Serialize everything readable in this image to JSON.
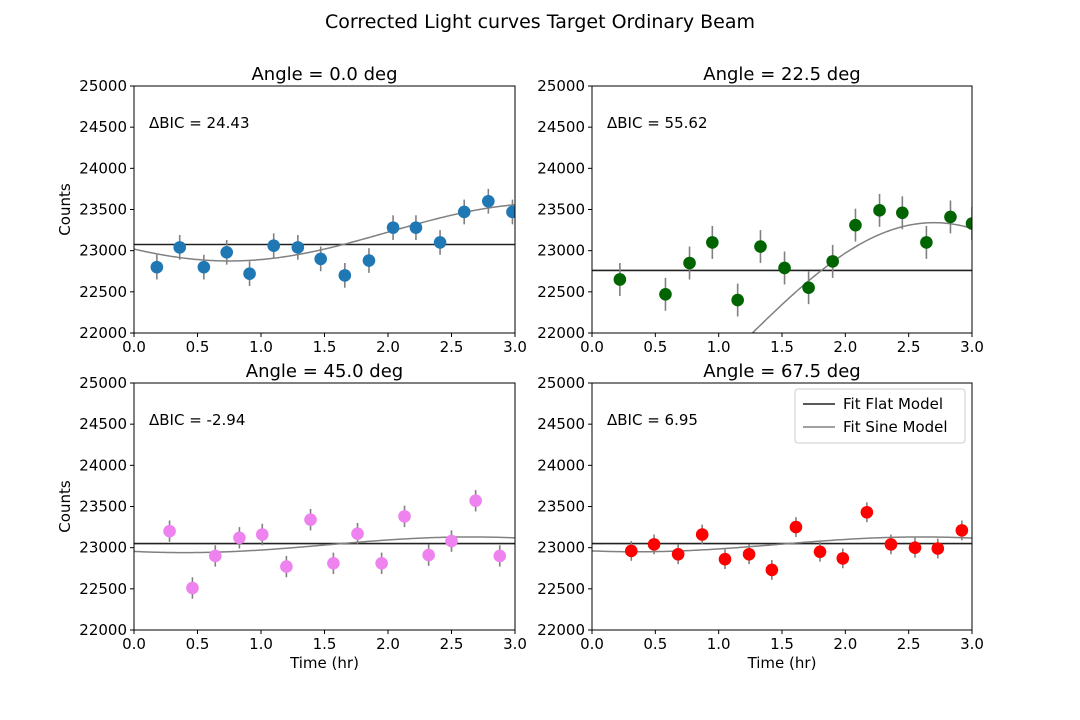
{
  "figure": {
    "suptitle": "Corrected Light curves Target Ordinary Beam"
  },
  "legend": {
    "flat_label": "Fit Flat Model",
    "sine_label": "Fit Sine Model"
  },
  "chart_data": [
    {
      "type": "scatter",
      "title": "Angle = 0.0 deg",
      "annotation": "ΔBIC = 24.43",
      "xlabel": "",
      "ylabel": "Counts",
      "xlim": [
        0.0,
        3.0
      ],
      "ylim": [
        22000,
        25000
      ],
      "xticks": [
        "0.0",
        "0.5",
        "1.0",
        "1.5",
        "2.0",
        "2.5",
        "3.0"
      ],
      "yticks": [
        "22000",
        "22500",
        "23000",
        "23500",
        "24000",
        "24500",
        "25000"
      ],
      "point_color": "#1f77b4",
      "x": [
        0.18,
        0.36,
        0.55,
        0.73,
        0.91,
        1.1,
        1.29,
        1.47,
        1.66,
        1.85,
        2.04,
        2.22,
        2.41,
        2.6,
        2.79,
        2.98
      ],
      "y": [
        22800,
        23040,
        22800,
        22980,
        22720,
        23060,
        23040,
        22900,
        22700,
        22880,
        23280,
        23280,
        23100,
        23470,
        23600,
        23470
      ],
      "yerr": 150,
      "flat_level": 23075,
      "sine": {
        "offset": 23225,
        "amplitude": 350,
        "period": 5.0,
        "trough_x": 0.75
      }
    },
    {
      "type": "scatter",
      "title": "Angle = 22.5 deg",
      "annotation": "ΔBIC = 55.62",
      "xlabel": "",
      "ylabel": "",
      "xlim": [
        0.0,
        3.0
      ],
      "ylim": [
        22000,
        25000
      ],
      "xticks": [
        "0.0",
        "0.5",
        "1.0",
        "1.5",
        "2.0",
        "2.5",
        "3.0"
      ],
      "yticks": [
        "22000",
        "22500",
        "23000",
        "23500",
        "24000",
        "24500",
        "25000"
      ],
      "point_color": "#006400",
      "x": [
        0.22,
        0.58,
        0.77,
        0.95,
        1.15,
        1.33,
        1.52,
        1.71,
        1.9,
        2.08,
        2.27,
        2.45,
        2.64,
        2.83,
        3.0
      ],
      "y": [
        22650,
        22470,
        22850,
        23100,
        22400,
        23050,
        22790,
        22550,
        22870,
        23310,
        23490,
        23460,
        23100,
        23410,
        23330
      ],
      "yerr": 200,
      "flat_level": 22760,
      "sine": {
        "offset": 21900,
        "amplitude": 1440,
        "period": 6.0,
        "trough_x": -0.3
      }
    },
    {
      "type": "scatter",
      "title": "Angle = 45.0 deg",
      "annotation": "ΔBIC = -2.94",
      "xlabel": "Time (hr)",
      "ylabel": "Counts",
      "xlim": [
        0.0,
        3.0
      ],
      "ylim": [
        22000,
        25000
      ],
      "xticks": [
        "0.0",
        "0.5",
        "1.0",
        "1.5",
        "2.0",
        "2.5",
        "3.0"
      ],
      "yticks": [
        "22000",
        "22500",
        "23000",
        "23500",
        "24000",
        "24500",
        "25000"
      ],
      "point_color": "#ee82ee",
      "x": [
        0.28,
        0.46,
        0.64,
        0.83,
        1.01,
        1.2,
        1.39,
        1.57,
        1.76,
        1.95,
        2.13,
        2.32,
        2.5,
        2.69,
        2.88
      ],
      "y": [
        23200,
        22510,
        22900,
        23120,
        23160,
        22770,
        23340,
        22810,
        23170,
        22810,
        23380,
        22910,
        23080,
        23570,
        22900
      ],
      "yerr": 130,
      "flat_level": 23050,
      "sine": {
        "offset": 23035,
        "amplitude": 95,
        "period": 4.5,
        "trough_x": 0.4
      }
    },
    {
      "type": "scatter",
      "title": "Angle = 67.5 deg",
      "annotation": "ΔBIC = 6.95",
      "xlabel": "Time (hr)",
      "ylabel": "",
      "xlim": [
        0.0,
        3.0
      ],
      "ylim": [
        22000,
        25000
      ],
      "xticks": [
        "0.0",
        "0.5",
        "1.0",
        "1.5",
        "2.0",
        "2.5",
        "3.0"
      ],
      "yticks": [
        "22000",
        "22500",
        "23000",
        "23500",
        "24000",
        "24500",
        "25000"
      ],
      "point_color": "#ff0000",
      "legend_position": "upper-right",
      "x": [
        0.31,
        0.49,
        0.68,
        0.87,
        1.05,
        1.24,
        1.42,
        1.61,
        1.8,
        1.98,
        2.17,
        2.36,
        2.55,
        2.73,
        2.92
      ],
      "y": [
        22960,
        23040,
        22920,
        23160,
        22860,
        22920,
        22730,
        23250,
        22950,
        22870,
        23430,
        23040,
        23000,
        22990,
        23210
      ],
      "yerr": 120,
      "flat_level": 23050,
      "sine": {
        "offset": 23040,
        "amplitude": 90,
        "period": 4.5,
        "trough_x": 0.35
      }
    }
  ]
}
